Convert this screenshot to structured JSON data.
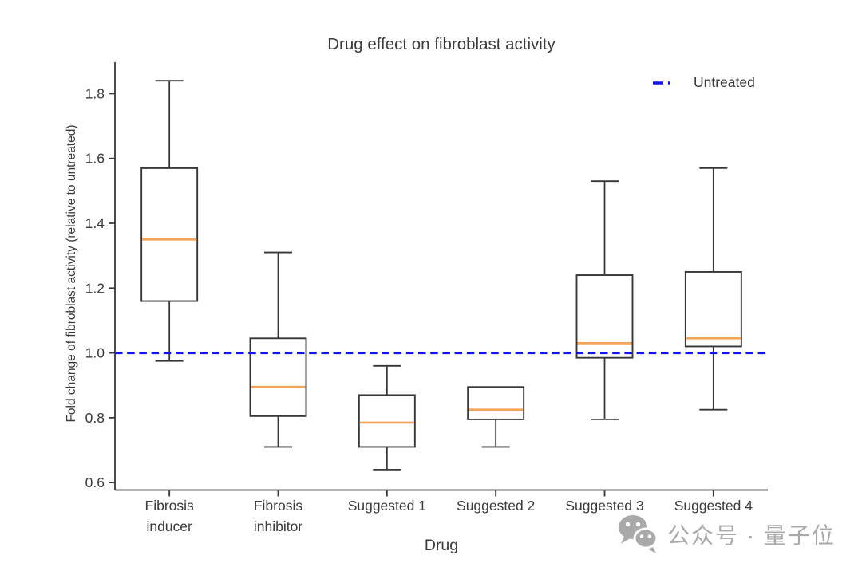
{
  "figure": {
    "watermark": {
      "icon": "wechat-icon",
      "text": "公众号 · 量子位"
    }
  },
  "colors": {
    "text": "#3a3a3a",
    "axis": "#373737",
    "box_edge": "#373737",
    "median": "#f6a257",
    "reference_line": "#1414ee",
    "watermark": "#a9a9a9",
    "background": "#ffffff"
  },
  "chart_data": {
    "type": "boxplot",
    "title": "Drug effect on fibroblast activity",
    "xlabel": "Drug",
    "ylabel": "Fold change of fibroblast activity (relative to untreated)",
    "categories": [
      "Fibrosis inducer",
      "Fibrosis inhibitor",
      "Suggested 1",
      "Suggested 2",
      "Suggested 3",
      "Suggested 4"
    ],
    "category_label_lines": [
      [
        "Fibrosis",
        "inducer"
      ],
      [
        "Fibrosis",
        "inhibitor"
      ],
      [
        "Suggested 1"
      ],
      [
        "Suggested 2"
      ],
      [
        "Suggested 3"
      ],
      [
        "Suggested 4"
      ]
    ],
    "boxes": [
      {
        "label": "Fibrosis inducer",
        "whislo": 0.975,
        "q1": 1.16,
        "med": 1.35,
        "q3": 1.57,
        "whishi": 1.84
      },
      {
        "label": "Fibrosis inhibitor",
        "whislo": 0.71,
        "q1": 0.805,
        "med": 0.895,
        "q3": 1.045,
        "whishi": 1.31
      },
      {
        "label": "Suggested 1",
        "whislo": 0.64,
        "q1": 0.71,
        "med": 0.785,
        "q3": 0.87,
        "whishi": 0.96
      },
      {
        "label": "Suggested 2",
        "whislo": 0.71,
        "q1": 0.795,
        "med": 0.825,
        "q3": 0.895,
        "whishi": 0.895
      },
      {
        "label": "Suggested 3",
        "whislo": 0.795,
        "q1": 0.985,
        "med": 1.03,
        "q3": 1.24,
        "whishi": 1.53
      },
      {
        "label": "Suggested 4",
        "whislo": 0.825,
        "q1": 1.02,
        "med": 1.045,
        "q3": 1.25,
        "whishi": 1.57
      }
    ],
    "yticks": [
      0.6,
      0.8,
      1.0,
      1.2,
      1.4,
      1.6,
      1.8
    ],
    "ylim": [
      0.577,
      1.897
    ],
    "grid": false,
    "legend_position": "upper right",
    "reference_line": {
      "y": 1.0,
      "label": "Untreated",
      "style": "dashed"
    }
  }
}
